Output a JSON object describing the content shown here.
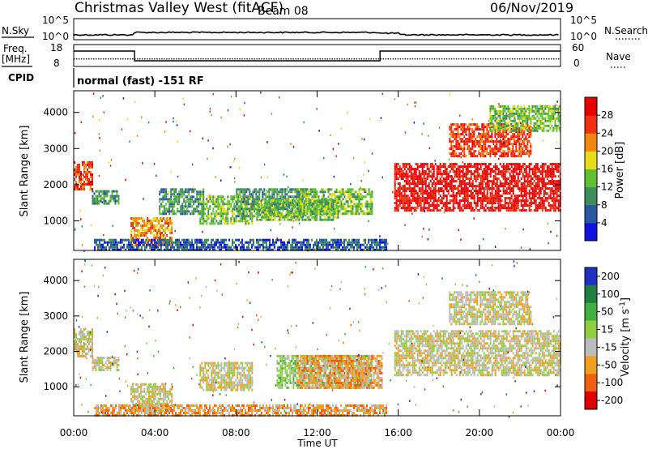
{
  "header": {
    "radar": "Christmas Valley West (fitACF)",
    "beam": "Beam 08",
    "date": "06/Nov/2019"
  },
  "noise_panel": {
    "left_label": "N.Sky",
    "right_label": "N.Search",
    "left_ticks": [
      "10^5",
      "10^0"
    ],
    "right_ticks": [
      "10^5",
      "10^0"
    ]
  },
  "freq_panel": {
    "left_label_1": "Freq.",
    "left_label_2": "[MHz]",
    "right_label": "Nave",
    "left_ticks": [
      "18",
      "8"
    ],
    "right_ticks": [
      "60",
      "0"
    ],
    "cpid_label": "CPID",
    "cpid_text": "normal (fast) -151 RF"
  },
  "time_axis": {
    "label": "Time UT",
    "ticks": [
      "00:00",
      "04:00",
      "08:00",
      "12:00",
      "16:00",
      "20:00",
      "00:00"
    ]
  },
  "chart_data": [
    {
      "type": "heatmap",
      "panel": "power",
      "ylabel": "Slant Range [km]",
      "y_ticks": [
        1000,
        2000,
        3000,
        4000
      ],
      "ylim": [
        180,
        4600
      ],
      "xlim_hours": [
        0,
        24
      ],
      "colorbar": {
        "label": "Power [dB]",
        "ticks": [
          "4",
          "8",
          "12",
          "16",
          "20",
          "24",
          "28"
        ],
        "colors": [
          "#1010e0",
          "#2858a0",
          "#3c8c5c",
          "#60c030",
          "#e8dc18",
          "#f08810",
          "#f03010",
          "#e80000"
        ]
      },
      "regions": [
        {
          "t": [
            0.0,
            0.9
          ],
          "r": [
            1850,
            2650
          ],
          "level": 6
        },
        {
          "t": [
            0.9,
            2.2
          ],
          "r": [
            1450,
            1850
          ],
          "level": 2
        },
        {
          "t": [
            2.8,
            4.8
          ],
          "r": [
            300,
            1100
          ],
          "level": 5
        },
        {
          "t": [
            4.2,
            6.4
          ],
          "r": [
            1200,
            1900
          ],
          "level": 2
        },
        {
          "t": [
            6.2,
            8.8
          ],
          "r": [
            900,
            1700
          ],
          "level": 3
        },
        {
          "t": [
            8.0,
            11.5
          ],
          "r": [
            1100,
            1900
          ],
          "level": 2
        },
        {
          "t": [
            9.0,
            13.0
          ],
          "r": [
            1000,
            1600
          ],
          "level": 3
        },
        {
          "t": [
            11.0,
            14.7
          ],
          "r": [
            1200,
            1900
          ],
          "level": 3
        },
        {
          "t": [
            1.0,
            15.4
          ],
          "r": [
            200,
            500
          ],
          "level": 1
        },
        {
          "t": [
            15.8,
            24.0
          ],
          "r": [
            1300,
            2600
          ],
          "level": 7
        },
        {
          "t": [
            18.5,
            22.5
          ],
          "r": [
            2800,
            3700
          ],
          "level": 6
        },
        {
          "t": [
            20.5,
            24.0
          ],
          "r": [
            3500,
            4200
          ],
          "level": 3
        }
      ]
    },
    {
      "type": "heatmap",
      "panel": "velocity",
      "ylabel": "Slant Range [km]",
      "y_ticks": [
        1000,
        2000,
        3000,
        4000
      ],
      "ylim": [
        180,
        4600
      ],
      "xlim_hours": [
        0,
        24
      ],
      "colorbar": {
        "label": "Velocity [m s-1]",
        "ticks": [
          "200",
          "100",
          "50",
          "15",
          "-15",
          "-50",
          "-100",
          "-200"
        ],
        "colors": [
          "#2030c0",
          "#208040",
          "#40b040",
          "#90d040",
          "#bcbcbc",
          "#f0a020",
          "#f06010",
          "#e00000"
        ]
      },
      "regions": [
        {
          "t": [
            0.0,
            0.9
          ],
          "r": [
            1850,
            2650
          ],
          "level": 4
        },
        {
          "t": [
            0.9,
            2.2
          ],
          "r": [
            1450,
            1850
          ],
          "level": 4
        },
        {
          "t": [
            2.8,
            4.8
          ],
          "r": [
            300,
            1100
          ],
          "level": 4
        },
        {
          "t": [
            6.2,
            8.8
          ],
          "r": [
            900,
            1700
          ],
          "level": 4
        },
        {
          "t": [
            10.0,
            14.7
          ],
          "r": [
            1000,
            1900
          ],
          "level": 3
        },
        {
          "t": [
            11.0,
            15.2
          ],
          "r": [
            1000,
            1900
          ],
          "level": 5
        },
        {
          "t": [
            1.0,
            15.4
          ],
          "r": [
            200,
            500
          ],
          "level": 5
        },
        {
          "t": [
            15.8,
            24.0
          ],
          "r": [
            1300,
            2600
          ],
          "level": 4
        },
        {
          "t": [
            18.5,
            22.5
          ],
          "r": [
            2800,
            3700
          ],
          "level": 4
        }
      ]
    }
  ]
}
